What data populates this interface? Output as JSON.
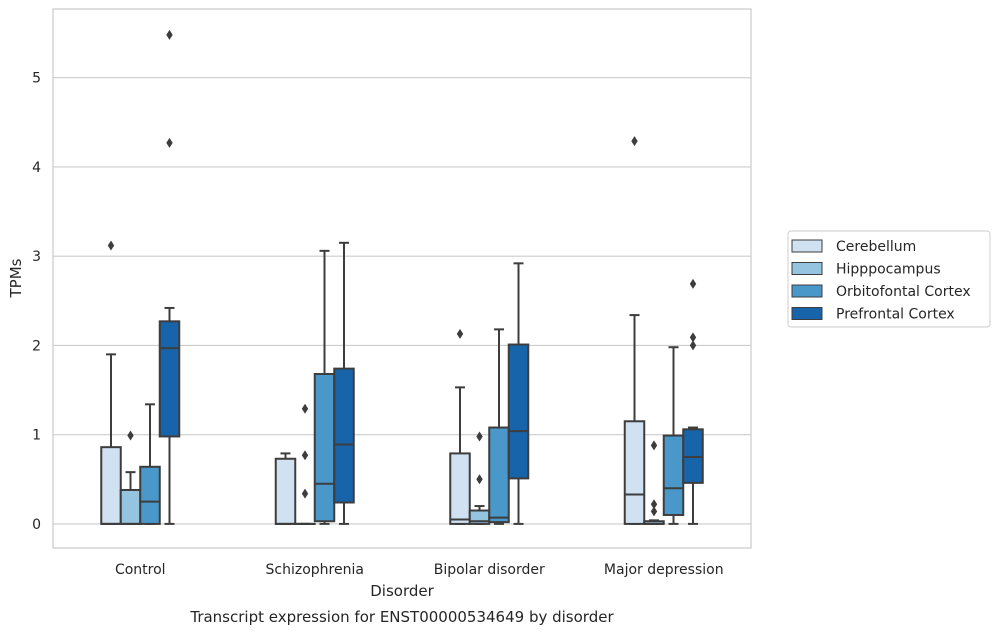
{
  "chart_data": {
    "type": "box",
    "title": "",
    "caption": "Transcript expression for ENST00000534649 by disorder",
    "xlabel": "Disorder",
    "ylabel": "TPMs",
    "ylim": [
      -0.27,
      5.77
    ],
    "yticks": [
      0,
      1,
      2,
      3,
      4,
      5
    ],
    "grid": true,
    "legend_position": "outside-right",
    "categories": [
      "Control",
      "Schizophrenia",
      "Bipolar disorder",
      "Major depression"
    ],
    "series": [
      {
        "name": "Cerebellum",
        "color": "#d0e1f2",
        "boxes": [
          {
            "whislo": 0,
            "q1": 0,
            "med": 0,
            "q3": 0.86,
            "whishi": 1.9,
            "fliers": [
              3.12
            ]
          },
          {
            "whislo": 0,
            "q1": 0,
            "med": 0,
            "q3": 0.73,
            "whishi": 0.79,
            "fliers": []
          },
          {
            "whislo": 0,
            "q1": 0,
            "med": 0.05,
            "q3": 0.79,
            "whishi": 1.53,
            "fliers": [
              2.13
            ]
          },
          {
            "whislo": 0,
            "q1": 0,
            "med": 0.33,
            "q3": 1.15,
            "whishi": 2.34,
            "fliers": [
              4.29
            ]
          }
        ]
      },
      {
        "name": "Hipppocampus",
        "color": "#94c4df",
        "boxes": [
          {
            "whislo": 0,
            "q1": 0,
            "med": 0,
            "q3": 0.38,
            "whishi": 0.58,
            "fliers": [
              0.99
            ]
          },
          {
            "whislo": 0,
            "q1": 0,
            "med": 0,
            "q3": 0,
            "whishi": 0,
            "fliers": [
              0.34,
              0.77,
              1.29
            ]
          },
          {
            "whislo": 0,
            "q1": 0,
            "med": 0.03,
            "q3": 0.15,
            "whishi": 0.2,
            "fliers": [
              0.5,
              0.98
            ]
          },
          {
            "whislo": 0,
            "q1": 0,
            "med": 0,
            "q3": 0.03,
            "whishi": 0.04,
            "fliers": [
              0.14,
              0.22,
              0.88
            ]
          }
        ]
      },
      {
        "name": "Orbitofontal Cortex",
        "color": "#4a98c9",
        "boxes": [
          {
            "whislo": 0,
            "q1": 0,
            "med": 0.25,
            "q3": 0.64,
            "whishi": 1.34,
            "fliers": []
          },
          {
            "whislo": 0,
            "q1": 0.03,
            "med": 0.45,
            "q3": 1.68,
            "whishi": 3.06,
            "fliers": []
          },
          {
            "whislo": 0,
            "q1": 0.02,
            "med": 0.07,
            "q3": 1.08,
            "whishi": 2.18,
            "fliers": []
          },
          {
            "whislo": 0,
            "q1": 0.1,
            "med": 0.4,
            "q3": 0.99,
            "whishi": 1.98,
            "fliers": []
          }
        ]
      },
      {
        "name": "Prefrontal Cortex",
        "color": "#1764ab",
        "boxes": [
          {
            "whislo": 0,
            "q1": 0.98,
            "med": 1.97,
            "q3": 2.27,
            "whishi": 2.42,
            "fliers": [
              4.27,
              5.48
            ]
          },
          {
            "whislo": 0,
            "q1": 0.24,
            "med": 0.89,
            "q3": 1.74,
            "whishi": 3.15,
            "fliers": []
          },
          {
            "whislo": 0,
            "q1": 0.51,
            "med": 1.04,
            "q3": 2.01,
            "whishi": 2.92,
            "fliers": []
          },
          {
            "whislo": 0,
            "q1": 0.46,
            "med": 0.75,
            "q3": 1.06,
            "whishi": 1.08,
            "fliers": [
              2.0,
              2.09,
              2.69
            ]
          }
        ]
      }
    ]
  }
}
